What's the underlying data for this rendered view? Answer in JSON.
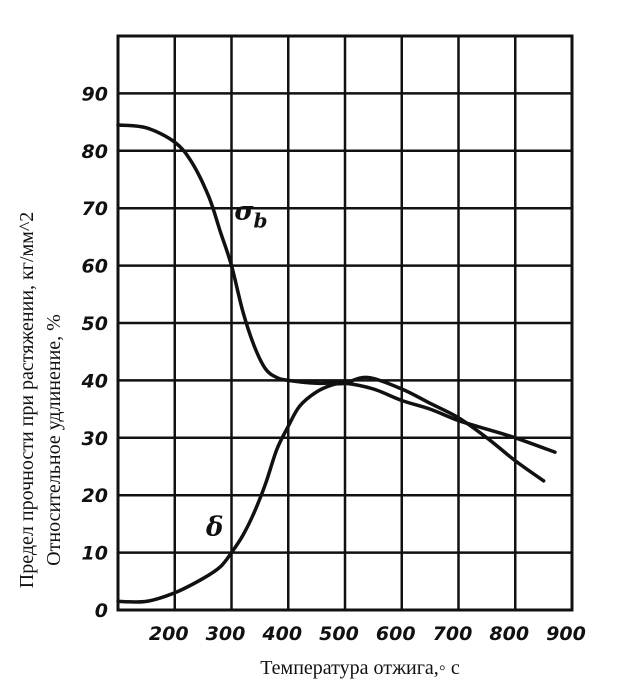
{
  "chart_data": {
    "type": "line",
    "title": "",
    "xlabel": "Температура отжига,◦ с",
    "ylabel_lines": [
      "Предел прочности при растяжении, кг/мм^2",
      "Относительное удлинение, %"
    ],
    "xlim": [
      100,
      900
    ],
    "ylim": [
      0,
      100
    ],
    "x_ticks": [
      200,
      300,
      400,
      500,
      600,
      700,
      800,
      900
    ],
    "y_ticks": [
      0,
      10,
      20,
      30,
      40,
      50,
      60,
      70,
      80,
      90
    ],
    "grid": true,
    "series": [
      {
        "name": "σb",
        "label_main": "σ",
        "label_sub": "b",
        "x": [
          100,
          150,
          200,
          230,
          260,
          280,
          300,
          320,
          340,
          360,
          380,
          400,
          450,
          500,
          550,
          600,
          650,
          700,
          750,
          800,
          870
        ],
        "y": [
          84.5,
          84,
          81.5,
          78,
          72,
          66,
          60,
          52,
          46,
          42,
          40.5,
          40,
          39.5,
          39.5,
          38.5,
          36.5,
          35,
          33,
          31.5,
          30,
          27.5
        ]
      },
      {
        "name": "δ",
        "label_main": "δ",
        "x": [
          100,
          150,
          200,
          250,
          280,
          300,
          320,
          340,
          360,
          380,
          400,
          420,
          450,
          480,
          500,
          540,
          600,
          650,
          700,
          750,
          800,
          850
        ],
        "y": [
          1.5,
          1.5,
          3,
          5.5,
          7.5,
          10,
          13,
          17,
          22,
          28,
          32,
          35.5,
          38,
          39.3,
          39.5,
          40.5,
          38.5,
          36,
          33.5,
          30,
          26,
          22.5
        ]
      }
    ],
    "annotations": [
      {
        "text": "σb",
        "x": 305,
        "y": 68
      },
      {
        "text": "δ",
        "x": 255,
        "y": 13
      }
    ]
  }
}
